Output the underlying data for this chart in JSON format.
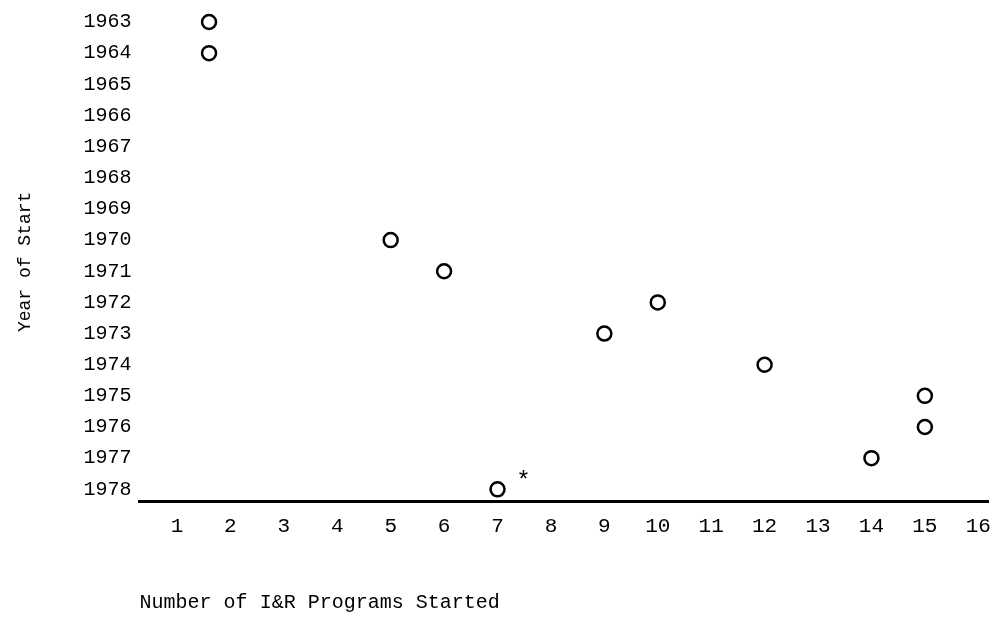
{
  "chart_data": {
    "type": "scatter",
    "xlabel": "Number of I&R Programs Started",
    "ylabel": "Year of Start",
    "x": [
      1.6,
      1.6,
      5,
      6,
      10,
      9,
      12,
      15,
      15,
      14,
      7
    ],
    "values": [
      1963,
      1964,
      1970,
      1971,
      1972,
      1973,
      1974,
      1975,
      1976,
      1977,
      1978
    ],
    "color": "#000000",
    "marker": "circle",
    "xlim": [
      0.3,
      16.2
    ],
    "xticks": [
      1,
      2,
      3,
      4,
      5,
      6,
      7,
      8,
      9,
      10,
      11,
      12,
      13,
      14,
      15,
      16
    ],
    "ylim": [
      1978.4,
      1963
    ],
    "yticks": [
      1963,
      1964,
      1965,
      1966,
      1967,
      1968,
      1969,
      1970,
      1971,
      1972,
      1973,
      1974,
      1975,
      1976,
      1977,
      1978
    ],
    "grid": false,
    "legend": false,
    "annotations": [
      {
        "text": "*",
        "x": 7,
        "y": 1978
      }
    ]
  }
}
